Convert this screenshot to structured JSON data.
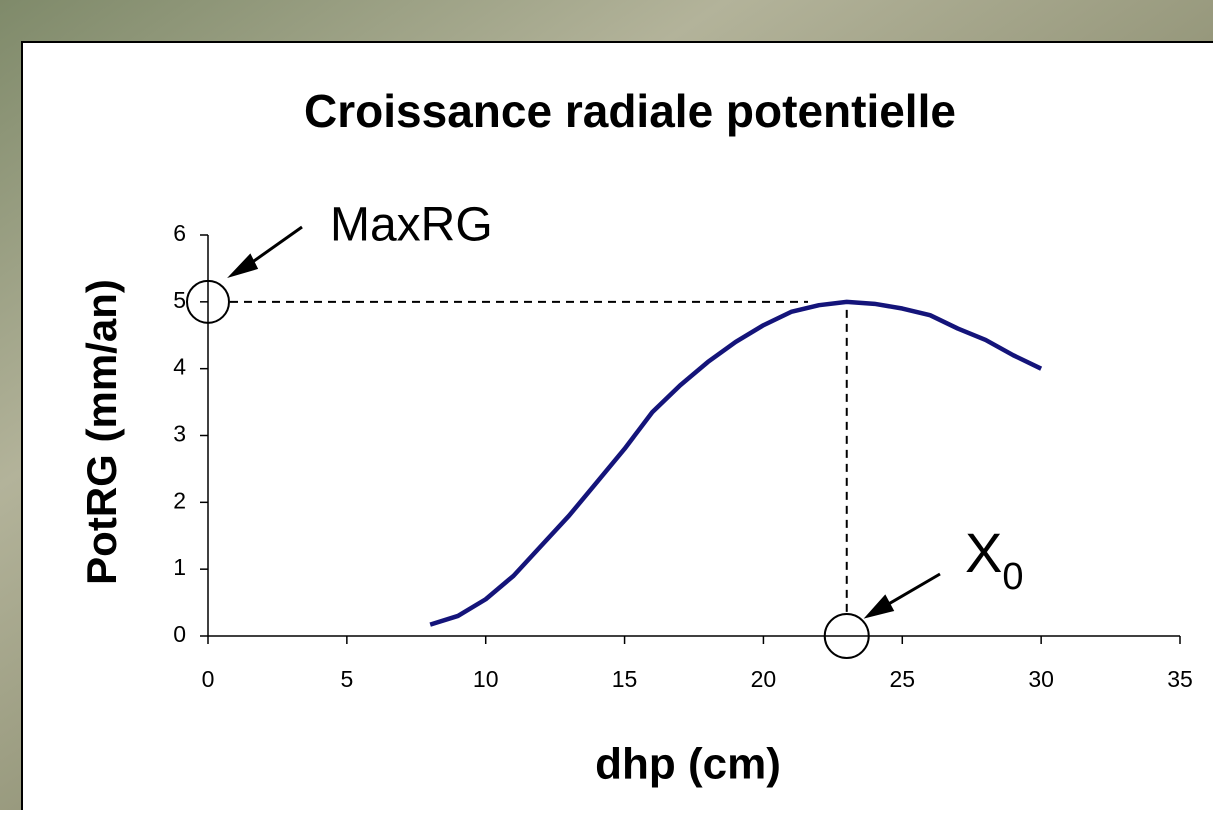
{
  "chart_data": {
    "type": "line",
    "title": "Croissance radiale potentielle",
    "x_label": "dhp (cm)",
    "y_label": "PotRG (mm/an)",
    "x": [
      8,
      9,
      10,
      11,
      12,
      13,
      14,
      15,
      16,
      17,
      18,
      19,
      20,
      21,
      22,
      23,
      24,
      25,
      26,
      27,
      28,
      29,
      30
    ],
    "series": [
      {
        "color": "#14147a",
        "values": [
          0.17,
          0.3,
          0.55,
          0.9,
          1.35,
          1.8,
          2.3,
          2.8,
          3.35,
          3.75,
          4.1,
          4.4,
          4.65,
          4.85,
          4.95,
          5.0,
          4.97,
          4.9,
          4.8,
          4.6,
          4.43,
          4.2,
          4.0
        ]
      }
    ],
    "xlim": [
      0,
      35
    ],
    "xticks": [
      0,
      5,
      10,
      15,
      20,
      25,
      30,
      35
    ],
    "ylim": [
      0,
      6
    ],
    "yticks": [
      0,
      1,
      2,
      3,
      4,
      5,
      6
    ],
    "annotations": [
      {
        "text": "MaxRG",
        "y": 5
      },
      {
        "text": "X",
        "subscript": "0",
        "x": 23
      }
    ]
  }
}
